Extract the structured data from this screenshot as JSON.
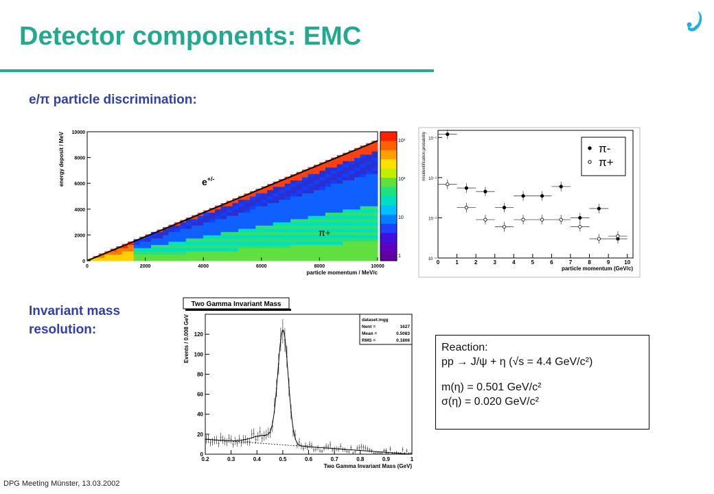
{
  "slide": {
    "title": "Detector components: EMC",
    "subtitle_pid": "e/π particle discrimination:",
    "subtitle_mass_line1": "Invariant mass",
    "subtitle_mass_line2": "resolution:",
    "footer": "DPG Meeting Münster,  13.03.2002"
  },
  "reaction_box": {
    "line1": "Reaction:",
    "line2": "pp → J/ψ + η (√s = 4.4 GeV/c²)",
    "line3": "m(η) = 0.501 GeV/c²",
    "line4": "σ(η) = 0.020 GeV/c²"
  },
  "colors": {
    "accent": "#22a98f",
    "subhead": "#2f3fb3"
  },
  "chart_data": [
    {
      "type": "heatmap",
      "xlabel": "particle momentum / MeV/c",
      "ylabel": "energy deposit / MeV",
      "xlim": [
        0,
        10000
      ],
      "ylim": [
        0,
        10000
      ],
      "x_ticks": [
        "0",
        "2000",
        "4000",
        "6000",
        "8000",
        "10000"
      ],
      "y_ticks": [
        "0",
        "2000",
        "4000",
        "6000",
        "8000",
        "10000"
      ],
      "colorbar_ticks": [
        "1",
        "10",
        "10²",
        "10³"
      ],
      "annotations": [
        "e +/-",
        "π+"
      ]
    },
    {
      "type": "scatter",
      "xlabel": "particle momentum (GeV/c)",
      "ylabel": "misidentification probability",
      "xlim": [
        0,
        10.3
      ],
      "ylim": [
        0.0001,
        0.15
      ],
      "log_y": true,
      "x_ticks": [
        "0",
        "1",
        "2",
        "3",
        "4",
        "5",
        "6",
        "7",
        "8",
        "9",
        "10"
      ],
      "y_ticks": [
        "10⁻⁴",
        "10⁻³",
        "10⁻²",
        "10⁻¹"
      ],
      "legend_position": "top-right",
      "series": [
        {
          "name": "π-",
          "marker": "filled",
          "x": [
            0.5,
            1.5,
            2.5,
            3.5,
            4.5,
            5.5,
            6.5,
            7.5,
            8.5,
            9.5
          ],
          "y": [
            0.12,
            0.0055,
            0.0045,
            0.0018,
            0.0035,
            0.0035,
            0.006,
            0.001,
            0.0017,
            0.0003
          ]
        },
        {
          "name": "π+",
          "marker": "open",
          "x": [
            0.5,
            1.5,
            2.5,
            3.5,
            4.5,
            5.5,
            6.5,
            7.5,
            8.5,
            9.5
          ],
          "y": [
            0.0068,
            0.0018,
            0.0009,
            0.0006,
            0.0009,
            0.0009,
            0.0009,
            0.0006,
            0.0003,
            0.00035
          ]
        }
      ]
    },
    {
      "type": "line",
      "title": "Two Gamma Invariant Mass",
      "xlabel": "Two Gamma Invariant Mass (GeV)",
      "ylabel": "Events / 0.008 GeV",
      "xlim": [
        0.2,
        1.0
      ],
      "ylim": [
        0,
        140
      ],
      "x_ticks": [
        "0.2",
        "0.3",
        "0.4",
        "0.5",
        "0.6",
        "0.7",
        "0.8",
        "0.9",
        "1"
      ],
      "y_ticks": [
        "0",
        "20",
        "40",
        "60",
        "80",
        "100",
        "120"
      ],
      "stats_box": [
        {
          "label": "dataset:mgg",
          "value": ""
        },
        {
          "label": "Nent =",
          "value": "1627"
        },
        {
          "label": "Mean =",
          "value": "0.5083"
        },
        {
          "label": "RMS =",
          "value": "0.1806"
        }
      ],
      "fit": {
        "peak_mass": 0.501,
        "peak_height": 112,
        "sigma": 0.02
      },
      "background": {
        "y_at_xmin": 15,
        "y_at_xmax": 0
      }
    }
  ]
}
